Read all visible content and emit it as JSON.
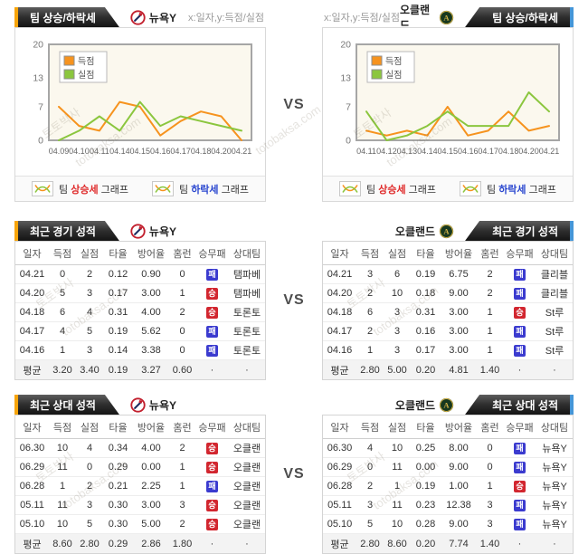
{
  "page": {
    "vs_label": "VS"
  },
  "watermark": {
    "line1": "토토박사",
    "line2": "totobaksa.com"
  },
  "teams": {
    "left": {
      "name": "뉴욕Y"
    },
    "right": {
      "name": "오클랜드",
      "logo_letter": "A"
    }
  },
  "trend": {
    "tab_title": "팀 상승/하락세",
    "axis_hint": "x:일자,y:득점/실점"
  },
  "graph_buttons": [
    {
      "prefix": "팀",
      "highlight": "상승세",
      "suffix": "그래프",
      "style": "up"
    },
    {
      "prefix": "팀",
      "highlight": "하락세",
      "suffix": "그래프",
      "style": "down"
    }
  ],
  "chart_data": [
    {
      "type": "line",
      "team": "뉴욕Y",
      "title": "팀 상승/하락세",
      "xlabel": "일자",
      "ylabel": "득점/실점",
      "ylim": [
        0,
        20
      ],
      "yticks": [
        0,
        7,
        13,
        20
      ],
      "x": [
        "04.09",
        "04.10",
        "04.11",
        "04.14",
        "04.15",
        "04.16",
        "04.17",
        "04.18",
        "04.20",
        "04.21"
      ],
      "series": [
        {
          "name": "득점",
          "color": "#f6931e",
          "values": [
            7,
            3,
            2,
            8,
            7,
            1,
            4,
            6,
            5,
            0
          ]
        },
        {
          "name": "실점",
          "color": "#8bc63e",
          "values": [
            0,
            2,
            5,
            2,
            8,
            3,
            5,
            4,
            3,
            2
          ]
        }
      ],
      "legend_position": "top-left",
      "grid": false
    },
    {
      "type": "line",
      "team": "오클랜드",
      "title": "팀 상승/하락세",
      "xlabel": "일자",
      "ylabel": "득점/실점",
      "ylim": [
        0,
        20
      ],
      "yticks": [
        0,
        7,
        13,
        20
      ],
      "x": [
        "04.11",
        "04.12",
        "04.13",
        "04.14",
        "04.15",
        "04.16",
        "04.17",
        "04.18",
        "04.20",
        "04.21"
      ],
      "series": [
        {
          "name": "득점",
          "color": "#f6931e",
          "values": [
            2,
            1,
            2,
            1,
            7,
            1,
            2,
            6,
            2,
            3
          ]
        },
        {
          "name": "실점",
          "color": "#8bc63e",
          "values": [
            6,
            0,
            1,
            3,
            6,
            3,
            3,
            3,
            10,
            6
          ]
        }
      ],
      "legend_position": "top-left",
      "grid": false
    }
  ],
  "recent_games": {
    "title": "최근 경기 성적",
    "columns": [
      "일자",
      "득점",
      "실점",
      "타율",
      "방어율",
      "홈런",
      "승무패",
      "상대팀"
    ],
    "left": {
      "team": "뉴욕Y",
      "rows": [
        [
          "04.21",
          "0",
          "2",
          "0.12",
          "0.90",
          "0",
          {
            "badge": "패",
            "type": "loss"
          },
          "탬파베"
        ],
        [
          "04.20",
          "5",
          "3",
          "0.17",
          "3.00",
          "1",
          {
            "badge": "승",
            "type": "win"
          },
          "탬파베"
        ],
        [
          "04.18",
          "6",
          "4",
          "0.31",
          "4.00",
          "2",
          {
            "badge": "승",
            "type": "win"
          },
          "토론토"
        ],
        [
          "04.17",
          "4",
          "5",
          "0.19",
          "5.62",
          "0",
          {
            "badge": "패",
            "type": "loss"
          },
          "토론토"
        ],
        [
          "04.16",
          "1",
          "3",
          "0.14",
          "3.38",
          "0",
          {
            "badge": "패",
            "type": "loss"
          },
          "토론토"
        ]
      ],
      "avg": [
        "평균",
        "3.20",
        "3.40",
        "0.19",
        "3.27",
        "0.60",
        "·",
        "·"
      ]
    },
    "right": {
      "team": "오클랜드",
      "rows": [
        [
          "04.21",
          "3",
          "6",
          "0.19",
          "6.75",
          "2",
          {
            "badge": "패",
            "type": "loss"
          },
          "클리블"
        ],
        [
          "04.20",
          "2",
          "10",
          "0.18",
          "9.00",
          "2",
          {
            "badge": "패",
            "type": "loss"
          },
          "클리블"
        ],
        [
          "04.18",
          "6",
          "3",
          "0.31",
          "3.00",
          "1",
          {
            "badge": "승",
            "type": "win"
          },
          "St루"
        ],
        [
          "04.17",
          "2",
          "3",
          "0.16",
          "3.00",
          "1",
          {
            "badge": "패",
            "type": "loss"
          },
          "St루"
        ],
        [
          "04.16",
          "1",
          "3",
          "0.17",
          "3.00",
          "1",
          {
            "badge": "패",
            "type": "loss"
          },
          "St루"
        ]
      ],
      "avg": [
        "평균",
        "2.80",
        "5.00",
        "0.20",
        "4.81",
        "1.40",
        "·",
        "·"
      ]
    }
  },
  "recent_vs": {
    "title": "최근 상대 성적",
    "columns": [
      "일자",
      "득점",
      "실점",
      "타율",
      "방어율",
      "홈런",
      "승무패",
      "상대팀"
    ],
    "left": {
      "team": "뉴욕Y",
      "rows": [
        [
          "06.30",
          "10",
          "4",
          "0.34",
          "4.00",
          "2",
          {
            "badge": "승",
            "type": "win"
          },
          "오클랜"
        ],
        [
          "06.29",
          "11",
          "0",
          "0.29",
          "0.00",
          "1",
          {
            "badge": "승",
            "type": "win"
          },
          "오클랜"
        ],
        [
          "06.28",
          "1",
          "2",
          "0.21",
          "2.25",
          "1",
          {
            "badge": "패",
            "type": "loss"
          },
          "오클랜"
        ],
        [
          "05.11",
          "11",
          "3",
          "0.30",
          "3.00",
          "3",
          {
            "badge": "승",
            "type": "win"
          },
          "오클랜"
        ],
        [
          "05.10",
          "10",
          "5",
          "0.30",
          "5.00",
          "2",
          {
            "badge": "승",
            "type": "win"
          },
          "오클랜"
        ]
      ],
      "avg": [
        "평균",
        "8.60",
        "2.80",
        "0.29",
        "2.86",
        "1.80",
        "·",
        "·"
      ]
    },
    "right": {
      "team": "오클랜드",
      "rows": [
        [
          "06.30",
          "4",
          "10",
          "0.25",
          "8.00",
          "0",
          {
            "badge": "패",
            "type": "loss"
          },
          "뉴욕Y"
        ],
        [
          "06.29",
          "0",
          "11",
          "0.00",
          "9.00",
          "0",
          {
            "badge": "패",
            "type": "loss"
          },
          "뉴욕Y"
        ],
        [
          "06.28",
          "2",
          "1",
          "0.19",
          "1.00",
          "1",
          {
            "badge": "승",
            "type": "win"
          },
          "뉴욕Y"
        ],
        [
          "05.11",
          "3",
          "11",
          "0.23",
          "12.38",
          "3",
          {
            "badge": "패",
            "type": "loss"
          },
          "뉴욕Y"
        ],
        [
          "05.10",
          "5",
          "10",
          "0.28",
          "9.00",
          "3",
          {
            "badge": "패",
            "type": "loss"
          },
          "뉴욕Y"
        ]
      ],
      "avg": [
        "평균",
        "2.80",
        "8.60",
        "0.20",
        "7.74",
        "1.40",
        "·",
        "·"
      ]
    }
  }
}
